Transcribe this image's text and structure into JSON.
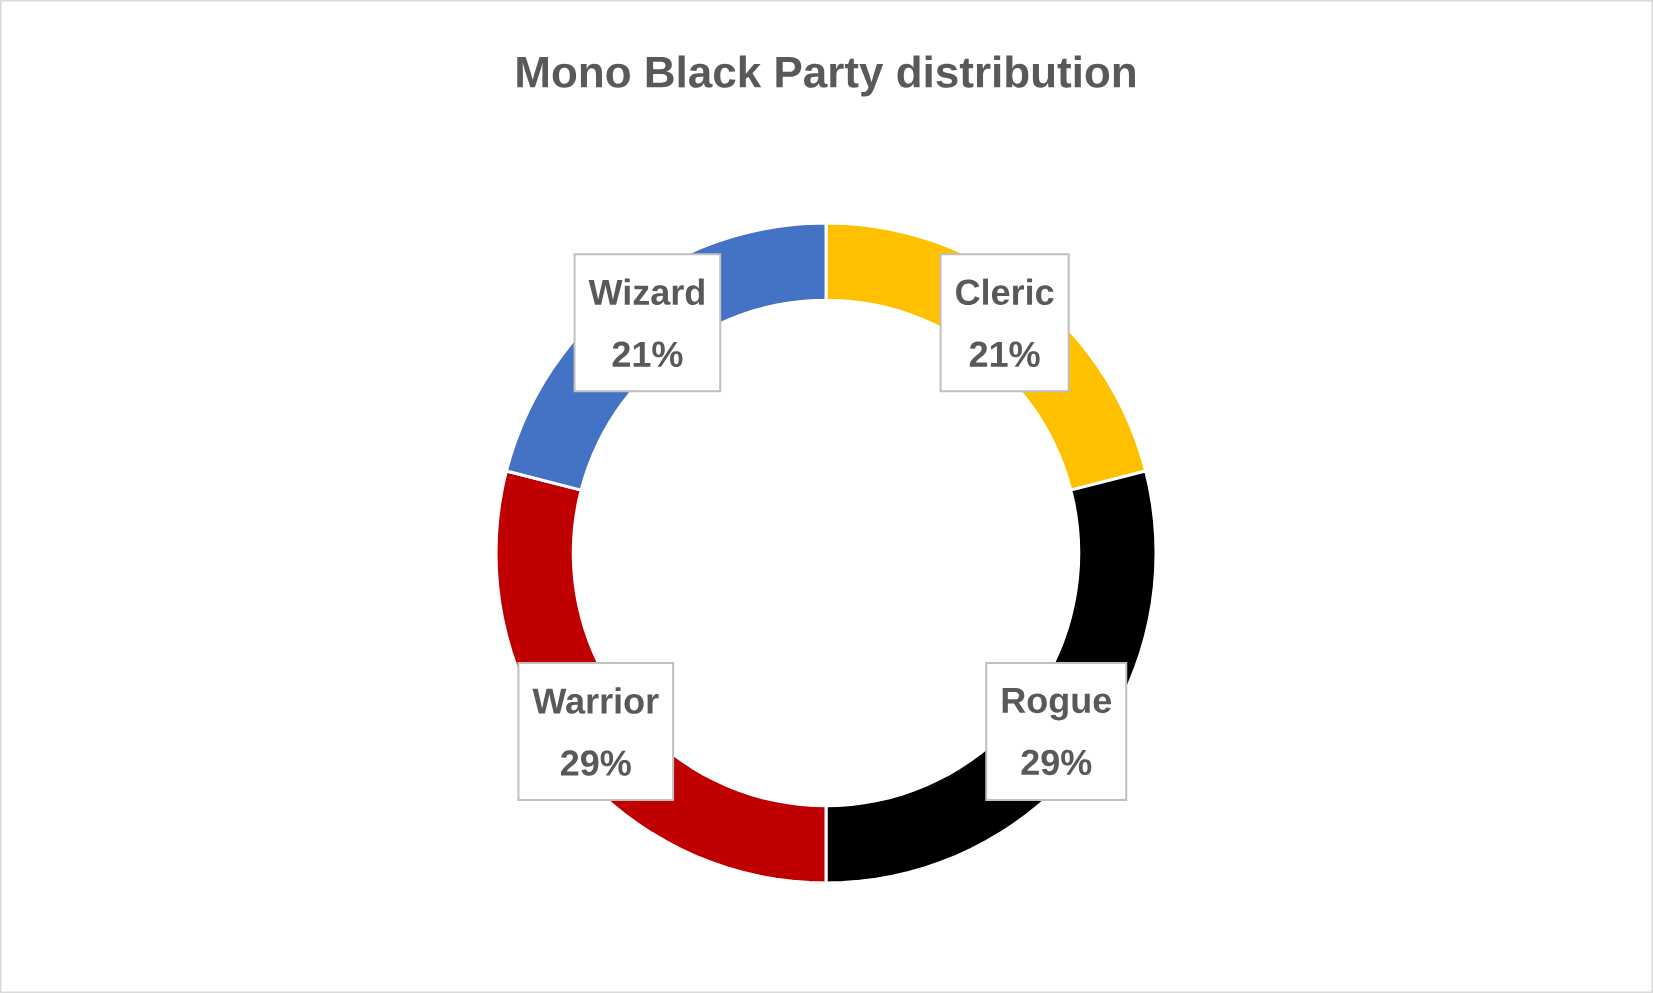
{
  "chart_data": {
    "type": "donut",
    "title": "Mono Black Party distribution",
    "categories": [
      "Cleric",
      "Rogue",
      "Warrior",
      "Wizard"
    ],
    "values": [
      21,
      29,
      29,
      21
    ],
    "colors": [
      "#ffc000",
      "#000000",
      "#c00000",
      "#4472c4"
    ],
    "value_labels": [
      "21%",
      "29%",
      "29%",
      "21%"
    ]
  }
}
